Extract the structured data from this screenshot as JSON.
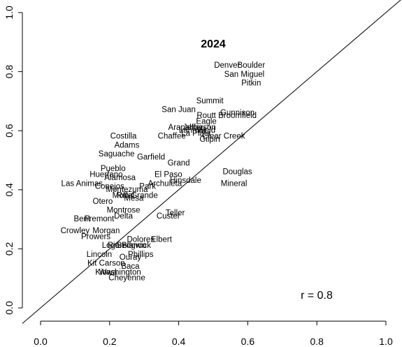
{
  "chart_data": {
    "type": "scatter",
    "title": "2024",
    "xlabel": "",
    "ylabel": "",
    "xlim": [
      0,
      1
    ],
    "ylim": [
      0,
      1
    ],
    "xticks": [
      "0.0",
      "0.2",
      "0.4",
      "0.6",
      "0.8",
      "1.0"
    ],
    "yticks": [
      "0.0",
      "0.2",
      "0.4",
      "0.6",
      "0.8",
      "1.0"
    ],
    "reference_line": {
      "intercept": 0,
      "slope": 1
    },
    "annotation": "r = 0.8",
    "points": [
      {
        "label": "Denver",
        "x": 0.54,
        "y": 0.82
      },
      {
        "label": "Boulder",
        "x": 0.61,
        "y": 0.82
      },
      {
        "label": "San Miguel",
        "x": 0.59,
        "y": 0.79
      },
      {
        "label": "Pitkin",
        "x": 0.61,
        "y": 0.76
      },
      {
        "label": "Summit",
        "x": 0.49,
        "y": 0.7
      },
      {
        "label": "San Juan",
        "x": 0.4,
        "y": 0.67
      },
      {
        "label": "Routt",
        "x": 0.48,
        "y": 0.65
      },
      {
        "label": "Gunnison",
        "x": 0.57,
        "y": 0.66
      },
      {
        "label": "Broomfield",
        "x": 0.57,
        "y": 0.65
      },
      {
        "label": "Eagle",
        "x": 0.48,
        "y": 0.63
      },
      {
        "label": "Arapahoe",
        "x": 0.42,
        "y": 0.61
      },
      {
        "label": "Jefferson",
        "x": 0.46,
        "y": 0.61
      },
      {
        "label": "Larimer",
        "x": 0.44,
        "y": 0.6
      },
      {
        "label": "Weld",
        "x": 0.48,
        "y": 0.6
      },
      {
        "label": "La Plata",
        "x": 0.45,
        "y": 0.59
      },
      {
        "label": "Clear Creek",
        "x": 0.53,
        "y": 0.58
      },
      {
        "label": "Chaffee",
        "x": 0.38,
        "y": 0.58
      },
      {
        "label": "Gilpin",
        "x": 0.49,
        "y": 0.57
      },
      {
        "label": "Costilla",
        "x": 0.24,
        "y": 0.58
      },
      {
        "label": "Adams",
        "x": 0.25,
        "y": 0.55
      },
      {
        "label": "Saguache",
        "x": 0.22,
        "y": 0.52
      },
      {
        "label": "Garfield",
        "x": 0.32,
        "y": 0.51
      },
      {
        "label": "Grand",
        "x": 0.4,
        "y": 0.49
      },
      {
        "label": "Pueblo",
        "x": 0.21,
        "y": 0.47
      },
      {
        "label": "Douglas",
        "x": 0.57,
        "y": 0.46
      },
      {
        "label": "Huerfano",
        "x": 0.19,
        "y": 0.45
      },
      {
        "label": "Alamosa",
        "x": 0.23,
        "y": 0.44
      },
      {
        "label": "El Paso",
        "x": 0.37,
        "y": 0.45
      },
      {
        "label": "Las Animas",
        "x": 0.12,
        "y": 0.42
      },
      {
        "label": "Hinsdale",
        "x": 0.42,
        "y": 0.43
      },
      {
        "label": "Mineral",
        "x": 0.56,
        "y": 0.42
      },
      {
        "label": "Archuleta",
        "x": 0.36,
        "y": 0.42
      },
      {
        "label": "Park",
        "x": 0.31,
        "y": 0.41
      },
      {
        "label": "Conejos",
        "x": 0.2,
        "y": 0.41
      },
      {
        "label": "Montezuma",
        "x": 0.25,
        "y": 0.4
      },
      {
        "label": "Moffat",
        "x": 0.24,
        "y": 0.38
      },
      {
        "label": "Rio Grande",
        "x": 0.28,
        "y": 0.38
      },
      {
        "label": "Mesa",
        "x": 0.27,
        "y": 0.37
      },
      {
        "label": "Otero",
        "x": 0.18,
        "y": 0.36
      },
      {
        "label": "Montrose",
        "x": 0.24,
        "y": 0.33
      },
      {
        "label": "Teller",
        "x": 0.39,
        "y": 0.32
      },
      {
        "label": "Delta",
        "x": 0.24,
        "y": 0.31
      },
      {
        "label": "Custer",
        "x": 0.37,
        "y": 0.31
      },
      {
        "label": "Bent",
        "x": 0.12,
        "y": 0.3
      },
      {
        "label": "Fremont",
        "x": 0.17,
        "y": 0.3
      },
      {
        "label": "Crowley",
        "x": 0.1,
        "y": 0.26
      },
      {
        "label": "Morgan",
        "x": 0.19,
        "y": 0.26
      },
      {
        "label": "Prowers",
        "x": 0.16,
        "y": 0.24
      },
      {
        "label": "Elbert",
        "x": 0.35,
        "y": 0.23
      },
      {
        "label": "Dolores",
        "x": 0.29,
        "y": 0.23
      },
      {
        "label": "Logan",
        "x": 0.21,
        "y": 0.21
      },
      {
        "label": "Sedgwick",
        "x": 0.27,
        "y": 0.21
      },
      {
        "label": "Rio Blanco",
        "x": 0.25,
        "y": 0.21
      },
      {
        "label": "Lincoln",
        "x": 0.17,
        "y": 0.18
      },
      {
        "label": "Phillips",
        "x": 0.29,
        "y": 0.18
      },
      {
        "label": "Mineral2",
        "x": 0.21,
        "y": 0.18
      },
      {
        "label": "Ouray",
        "x": 0.26,
        "y": 0.17
      },
      {
        "label": "Kit Carson",
        "x": 0.19,
        "y": 0.15
      },
      {
        "label": "Baca",
        "x": 0.26,
        "y": 0.14
      },
      {
        "label": "Kiowa",
        "x": 0.19,
        "y": 0.12
      },
      {
        "label": "Washington",
        "x": 0.23,
        "y": 0.12
      },
      {
        "label": "Cheyenne",
        "x": 0.25,
        "y": 0.1
      }
    ]
  }
}
